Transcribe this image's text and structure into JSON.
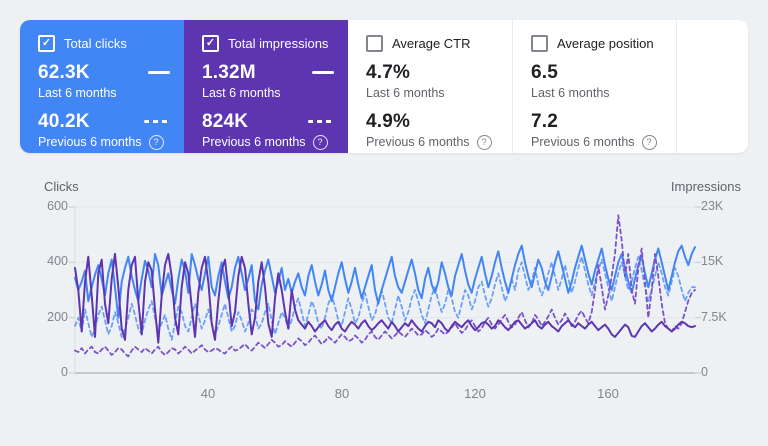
{
  "icons": {
    "check": "✓",
    "help": "?"
  },
  "cards": [
    {
      "label": "Total clicks",
      "checked": true,
      "bg": "#4285f4",
      "current": {
        "value": "62.3K",
        "period": "Last 6 months"
      },
      "previous": {
        "value": "40.2K",
        "period": "Previous 6 months"
      }
    },
    {
      "label": "Total impressions",
      "checked": true,
      "bg": "#5e35b1",
      "current": {
        "value": "1.32M",
        "period": "Last 6 months"
      },
      "previous": {
        "value": "824K",
        "period": "Previous 6 months"
      }
    },
    {
      "label": "Average CTR",
      "checked": false,
      "bg": "#ffffff",
      "current": {
        "value": "4.7%",
        "period": "Last 6 months"
      },
      "previous": {
        "value": "4.9%",
        "period": "Previous 6 months"
      }
    },
    {
      "label": "Average position",
      "checked": false,
      "bg": "#ffffff",
      "current": {
        "value": "6.5",
        "period": "Last 6 months"
      },
      "previous": {
        "value": "7.2",
        "period": "Previous 6 months"
      }
    }
  ],
  "chart": {
    "left_axis": {
      "title": "Clicks",
      "ticks": [
        "600",
        "400",
        "200",
        "0"
      ]
    },
    "right_axis": {
      "title": "Impressions",
      "ticks": [
        "23K",
        "15K",
        "7.5K",
        "0"
      ]
    },
    "x_axis": {
      "ticks": [
        "40",
        "80",
        "120",
        "160"
      ]
    }
  },
  "chart_data": {
    "type": "line",
    "x_range": [
      0,
      186
    ],
    "xticks": [
      40,
      80,
      120,
      160
    ],
    "ylim_left": [
      0,
      600
    ],
    "ylim_right": [
      0,
      23000
    ],
    "grid": true,
    "legend_position": "cards-top",
    "series": [
      {
        "name": "Total clicks — Previous 6 months",
        "axis": "left",
        "style": "dashed",
        "color": "#6ca0f6",
        "values": [
          170,
          200,
          150,
          230,
          180,
          130,
          160,
          210,
          240,
          190,
          140,
          170,
          220,
          180,
          130,
          160,
          200,
          250,
          210,
          160,
          140,
          190,
          230,
          260,
          200,
          150,
          180,
          210,
          160,
          120,
          180,
          240,
          220,
          170,
          150,
          200,
          250,
          210,
          160,
          190,
          230,
          180,
          140,
          170,
          210,
          250,
          200,
          150,
          170,
          220,
          190,
          150,
          180,
          230,
          210,
          160,
          180,
          220,
          250,
          190,
          140,
          180,
          220,
          200,
          160,
          190,
          240,
          270,
          220,
          170,
          210,
          260,
          230,
          180,
          160,
          200,
          250,
          280,
          240,
          190,
          170,
          220,
          270,
          230,
          180,
          200,
          250,
          290,
          240,
          190,
          210,
          260,
          300,
          250,
          200,
          180,
          230,
          280,
          240,
          190,
          220,
          270,
          300,
          260,
          210,
          180,
          230,
          280,
          310,
          260,
          220,
          250,
          300,
          270,
          220,
          200,
          250,
          300,
          280,
          230,
          260,
          310,
          330,
          280,
          240,
          270,
          320,
          360,
          310,
          260,
          290,
          340,
          300,
          370,
          400,
          350,
          300,
          330,
          380,
          320,
          280,
          310,
          360,
          400,
          350,
          300,
          340,
          390,
          340,
          290,
          330,
          380,
          420,
          370,
          320,
          280,
          330,
          370,
          410,
          360,
          310,
          260,
          310,
          360,
          400,
          350,
          300,
          330,
          380,
          420,
          370,
          310,
          260,
          300,
          350,
          400,
          360,
          310,
          280,
          330,
          380,
          350,
          300,
          260,
          290,
          310,
          310
        ]
      },
      {
        "name": "Total clicks — Last 6 months",
        "axis": "left",
        "style": "solid",
        "color": "#4285f4",
        "values": [
          345,
          300,
          330,
          370,
          260,
          310,
          355,
          390,
          340,
          280,
          360,
          410,
          310,
          200,
          330,
          380,
          420,
          350,
          300,
          260,
          340,
          405,
          370,
          310,
          430,
          390,
          280,
          320,
          360,
          300,
          250,
          340,
          410,
          370,
          290,
          430,
          390,
          340,
          300,
          360,
          420,
          310,
          280,
          350,
          400,
          330,
          270,
          310,
          380,
          420,
          360,
          300,
          340,
          390,
          260,
          230,
          320,
          370,
          410,
          350,
          290,
          330,
          380,
          300,
          340,
          290,
          330,
          360,
          310,
          280,
          350,
          390,
          330,
          280,
          320,
          370,
          300,
          260,
          310,
          360,
          400,
          340,
          290,
          330,
          380,
          320,
          270,
          310,
          350,
          390,
          300,
          250,
          300,
          340,
          380,
          420,
          350,
          310,
          290,
          330,
          370,
          410,
          360,
          300,
          270,
          340,
          380,
          320,
          290,
          330,
          400,
          360,
          310,
          280,
          350,
          390,
          430,
          370,
          320,
          290,
          340,
          380,
          420,
          360,
          310,
          350,
          400,
          440,
          380,
          330,
          290,
          340,
          390,
          430,
          460,
          400,
          350,
          310,
          360,
          410,
          380,
          330,
          300,
          350,
          400,
          440,
          390,
          340,
          290,
          330,
          380,
          420,
          460,
          410,
          360,
          320,
          370,
          410,
          450,
          390,
          340,
          300,
          350,
          400,
          430,
          380,
          330,
          290,
          340,
          390,
          420,
          360,
          310,
          360,
          410,
          450,
          400,
          350,
          300,
          350,
          400,
          440,
          460,
          420,
          390,
          430,
          455
        ]
      },
      {
        "name": "Total impressions — Previous 6 months",
        "axis": "right",
        "style": "dashed",
        "color": "#7a52c9",
        "values": [
          3100,
          2900,
          3450,
          2700,
          3250,
          3650,
          2900,
          2700,
          3250,
          3650,
          3100,
          2500,
          2900,
          3450,
          3250,
          2700,
          2300,
          3100,
          3650,
          3250,
          2900,
          3450,
          3100,
          2700,
          3250,
          3650,
          2900,
          2500,
          2900,
          3450,
          3250,
          2700,
          3100,
          3650,
          3250,
          2700,
          3100,
          3450,
          3850,
          3250,
          2900,
          3100,
          3450,
          3250,
          2900,
          2700,
          3250,
          3650,
          3100,
          3250,
          3650,
          4000,
          3450,
          3100,
          3650,
          4200,
          3850,
          3450,
          4000,
          4600,
          4200,
          3650,
          3850,
          4400,
          4000,
          3650,
          4200,
          4800,
          4400,
          3850,
          4200,
          4800,
          5200,
          4600,
          4000,
          4400,
          5000,
          4600,
          4200,
          4800,
          5350,
          5000,
          4400,
          4600,
          5200,
          4800,
          4200,
          4600,
          5350,
          5750,
          5000,
          4600,
          5200,
          5750,
          5350,
          4800,
          5200,
          5750,
          5350,
          5000,
          5550,
          6150,
          5750,
          5200,
          5350,
          5950,
          5550,
          5000,
          5350,
          6150,
          5750,
          5350,
          5750,
          6300,
          6900,
          6150,
          5550,
          5950,
          6700,
          7300,
          6500,
          5750,
          6150,
          7100,
          7650,
          6700,
          6150,
          6700,
          7450,
          8050,
          7100,
          6300,
          6700,
          7650,
          8450,
          7300,
          6300,
          6900,
          8050,
          7450,
          6500,
          7100,
          7850,
          8800,
          7650,
          6700,
          7300,
          8250,
          7450,
          6500,
          7100,
          8050,
          8600,
          7650,
          6900,
          8450,
          11500,
          14950,
          11900,
          8800,
          10750,
          13400,
          16500,
          21850,
          18400,
          13400,
          16500,
          11500,
          9600,
          14550,
          17250,
          12650,
          7650,
          11500,
          16500,
          13400,
          9600,
          6900,
          6150,
          5750,
          6500,
          6150,
          6900,
          8450,
          10000,
          11100,
          11500
        ]
      },
      {
        "name": "Total impressions — Last 6 months",
        "axis": "right",
        "style": "solid",
        "color": "#5e35b1",
        "values": [
          14550,
          11500,
          5750,
          12650,
          16100,
          10750,
          5000,
          13800,
          15700,
          9600,
          6900,
          13050,
          16500,
          11900,
          6150,
          4600,
          11500,
          14950,
          16100,
          9950,
          5350,
          12650,
          15350,
          14200,
          8800,
          4200,
          10750,
          14950,
          16500,
          13400,
          7650,
          5350,
          11900,
          15350,
          13800,
          9200,
          5000,
          11100,
          14550,
          16100,
          12650,
          6900,
          4600,
          9950,
          14200,
          15700,
          11500,
          6500,
          8450,
          13400,
          16100,
          14550,
          9600,
          5350,
          7650,
          12650,
          15350,
          11900,
          6900,
          5000,
          10350,
          13800,
          11500,
          8450,
          6150,
          11500,
          8800,
          7300,
          6700,
          6150,
          7100,
          6500,
          5750,
          6350,
          6900,
          7300,
          6500,
          5950,
          6700,
          7100,
          6150,
          5750,
          6500,
          7100,
          6700,
          6150,
          6900,
          7300,
          6500,
          5950,
          6350,
          6900,
          7300,
          6700,
          6150,
          7100,
          6500,
          5750,
          6350,
          6900,
          6500,
          7300,
          6700,
          6150,
          5750,
          6500,
          7100,
          6900,
          6350,
          7300,
          6900,
          6150,
          5750,
          6500,
          7100,
          6700,
          6350,
          6900,
          7300,
          6500,
          5950,
          6350,
          6900,
          7100,
          6700,
          6150,
          6500,
          7300,
          6900,
          6350,
          5950,
          6500,
          7100,
          7300,
          6700,
          6150,
          6500,
          6900,
          7300,
          6500,
          6150,
          6700,
          7100,
          6500,
          6150,
          5750,
          6500,
          6900,
          7300,
          6700,
          6350,
          6900,
          6500,
          6150,
          6700,
          7100,
          6500,
          5950,
          6350,
          6700,
          6150,
          5350,
          5000,
          5550,
          6150,
          6700,
          6350,
          5150,
          5000,
          5750,
          6500,
          6900,
          6350,
          5750,
          6150,
          6700,
          7100,
          6500,
          6150,
          5750,
          6150,
          6700,
          7100,
          6900,
          6500,
          6350,
          6500
        ]
      }
    ]
  }
}
